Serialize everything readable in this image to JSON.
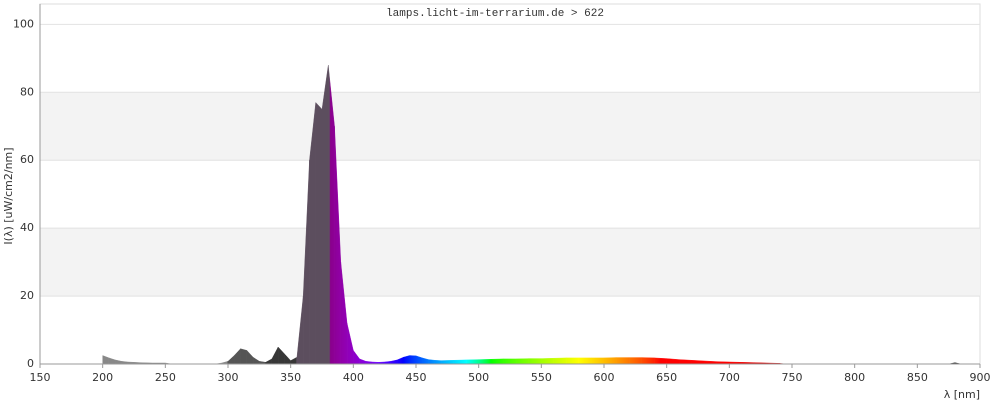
{
  "chart_data": {
    "type": "area",
    "title": "lamps.licht-im-terrarium.de > 622",
    "x_label": "λ [nm]",
    "y_label": "I(λ)  [uW/cm2/nm]",
    "color": "spectrum",
    "grid": "bands",
    "xlim": [
      150,
      900
    ],
    "xticks": [
      150,
      200,
      250,
      300,
      350,
      400,
      450,
      500,
      550,
      600,
      650,
      700,
      750,
      800,
      850,
      900
    ],
    "ylim": [
      0,
      106
    ],
    "yticks": [
      0,
      20,
      40,
      60,
      80,
      100
    ],
    "x": [
      200,
      205,
      210,
      215,
      220,
      225,
      230,
      240,
      250,
      255,
      290,
      295,
      300,
      305,
      310,
      315,
      320,
      325,
      330,
      335,
      340,
      345,
      350,
      355,
      360,
      365,
      370,
      375,
      380,
      385,
      390,
      395,
      400,
      405,
      410,
      415,
      420,
      425,
      430,
      435,
      440,
      445,
      450,
      455,
      460,
      465,
      470,
      480,
      490,
      500,
      510,
      520,
      530,
      540,
      550,
      560,
      570,
      580,
      590,
      600,
      610,
      620,
      630,
      640,
      650,
      660,
      670,
      680,
      690,
      700,
      710,
      720,
      730,
      740,
      745,
      875,
      880,
      885
    ],
    "values": [
      2.5,
      1.8,
      1.2,
      0.8,
      0.6,
      0.5,
      0.4,
      0.3,
      0.3,
      0,
      0,
      0.3,
      0.8,
      2.5,
      4.5,
      4.0,
      2.0,
      0.8,
      0.5,
      1.5,
      5.0,
      3.0,
      1.0,
      2.0,
      20,
      60,
      77,
      75,
      88,
      70,
      30,
      12,
      4,
      1.5,
      0.8,
      0.6,
      0.5,
      0.6,
      0.8,
      1.2,
      2.0,
      2.5,
      2.4,
      1.8,
      1.3,
      1.1,
      1.0,
      1.1,
      1.2,
      1.3,
      1.4,
      1.5,
      1.5,
      1.6,
      1.6,
      1.7,
      1.8,
      1.8,
      1.8,
      1.8,
      1.9,
      1.9,
      1.9,
      1.8,
      1.6,
      1.3,
      1.1,
      0.9,
      0.7,
      0.6,
      0.5,
      0.4,
      0.3,
      0.2,
      0,
      0,
      0.4,
      0
    ]
  }
}
